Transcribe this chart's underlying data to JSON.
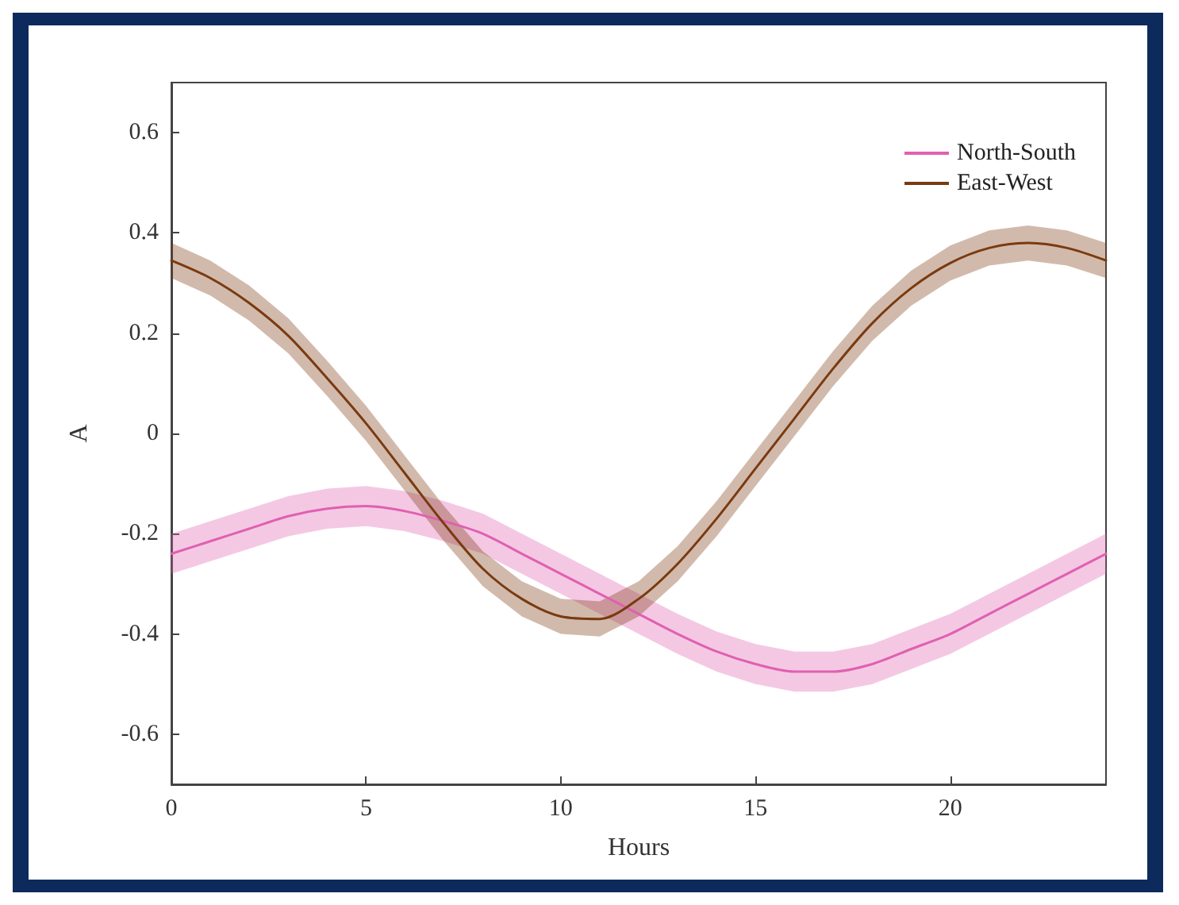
{
  "chart_data": {
    "type": "line",
    "xlabel": "Hours",
    "ylabel": "A",
    "x": [
      0,
      1,
      2,
      3,
      4,
      5,
      6,
      7,
      8,
      9,
      10,
      11,
      12,
      13,
      14,
      15,
      16,
      17,
      18,
      19,
      20,
      21,
      22,
      23,
      24
    ],
    "series": [
      {
        "name": "North-South",
        "color": "#e060b0",
        "values": [
          -0.24,
          -0.215,
          -0.19,
          -0.165,
          -0.15,
          -0.145,
          -0.155,
          -0.175,
          -0.2,
          -0.24,
          -0.28,
          -0.32,
          -0.36,
          -0.4,
          -0.435,
          -0.46,
          -0.475,
          -0.475,
          -0.46,
          -0.43,
          -0.4,
          -0.36,
          -0.32,
          -0.28,
          -0.24
        ],
        "lower": [
          -0.28,
          -0.255,
          -0.23,
          -0.205,
          -0.19,
          -0.185,
          -0.195,
          -0.215,
          -0.24,
          -0.28,
          -0.32,
          -0.36,
          -0.4,
          -0.44,
          -0.475,
          -0.5,
          -0.515,
          -0.515,
          -0.5,
          -0.47,
          -0.44,
          -0.4,
          -0.36,
          -0.32,
          -0.28
        ],
        "upper": [
          -0.2,
          -0.175,
          -0.15,
          -0.125,
          -0.11,
          -0.105,
          -0.115,
          -0.135,
          -0.16,
          -0.2,
          -0.24,
          -0.28,
          -0.32,
          -0.36,
          -0.395,
          -0.42,
          -0.435,
          -0.435,
          -0.42,
          -0.39,
          -0.36,
          -0.32,
          -0.28,
          -0.24,
          -0.2
        ]
      },
      {
        "name": "East-West",
        "color": "#7a3a10",
        "values": [
          0.345,
          0.31,
          0.26,
          0.195,
          0.11,
          0.02,
          -0.08,
          -0.18,
          -0.27,
          -0.33,
          -0.365,
          -0.37,
          -0.33,
          -0.26,
          -0.17,
          -0.07,
          0.03,
          0.13,
          0.22,
          0.29,
          0.34,
          0.37,
          0.38,
          0.37,
          0.345
        ],
        "lower": [
          0.31,
          0.275,
          0.225,
          0.16,
          0.075,
          -0.015,
          -0.115,
          -0.215,
          -0.305,
          -0.365,
          -0.4,
          -0.405,
          -0.365,
          -0.295,
          -0.205,
          -0.105,
          -0.005,
          0.095,
          0.185,
          0.255,
          0.305,
          0.335,
          0.345,
          0.335,
          0.31
        ],
        "upper": [
          0.38,
          0.345,
          0.295,
          0.23,
          0.145,
          0.055,
          -0.045,
          -0.145,
          -0.235,
          -0.295,
          -0.33,
          -0.335,
          -0.295,
          -0.225,
          -0.135,
          -0.035,
          0.065,
          0.165,
          0.255,
          0.325,
          0.375,
          0.405,
          0.415,
          0.405,
          0.38
        ]
      }
    ],
    "xlim": [
      0,
      24
    ],
    "xticks": [
      0,
      5,
      10,
      15,
      20
    ],
    "ylim": [
      -0.7,
      0.7
    ],
    "yticks": [
      -0.6,
      -0.4,
      -0.2,
      0,
      0.2,
      0.4,
      0.6
    ],
    "legend": "top right",
    "grid": false,
    "marker": "none",
    "line_style": "solid"
  }
}
